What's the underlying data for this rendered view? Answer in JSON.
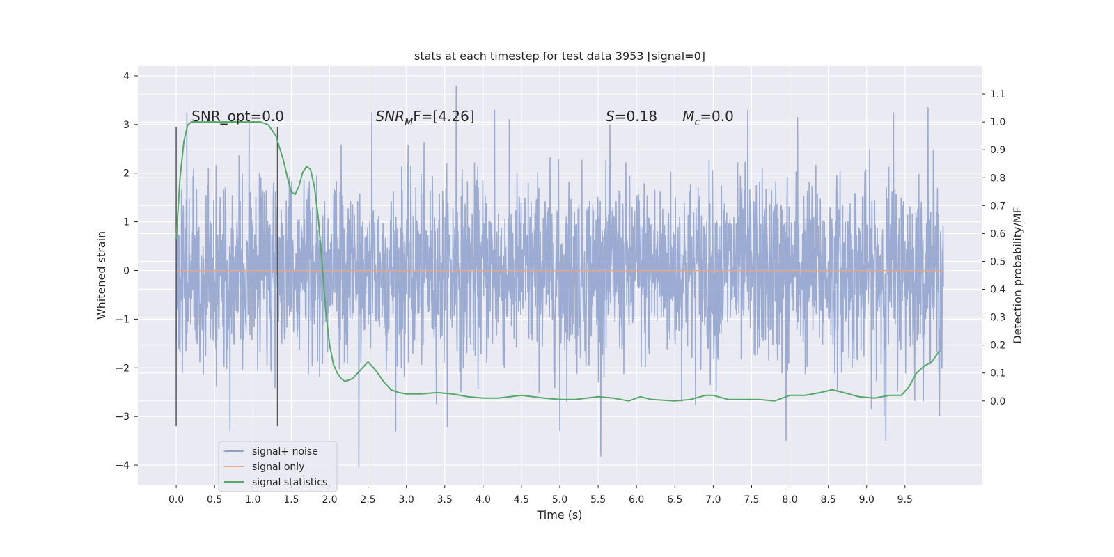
{
  "chart_data": {
    "type": "line",
    "title": "stats at each timestep for test data 3953 [signal=0]",
    "xlabel": "Time (s)",
    "ylabel": "Whitened strain",
    "y2label": "Detection probability/MF",
    "xlim": [
      -0.5,
      10.5
    ],
    "ylim": [
      -4.4,
      4.2
    ],
    "y2lim": [
      -0.3,
      1.2
    ],
    "xticks": [
      "0.0",
      "0.5",
      "1.0",
      "1.5",
      "2.0",
      "2.5",
      "3.0",
      "3.5",
      "4.0",
      "4.5",
      "5.0",
      "5.5",
      "6.0",
      "6.5",
      "7.0",
      "7.5",
      "8.0",
      "8.5",
      "9.0",
      "9.5"
    ],
    "yticks": [
      "4",
      "3",
      "2",
      "1",
      "0",
      "−1",
      "−2",
      "−3",
      "−4"
    ],
    "y2ticks": [
      "1.1",
      "1.0",
      "0.9",
      "0.8",
      "0.7",
      "0.6",
      "0.5",
      "0.4",
      "0.3",
      "0.2",
      "0.1",
      "0.0"
    ],
    "grid": true,
    "legend_position": "lower-left",
    "colors": {
      "noise": "#8da0cb",
      "signal": "#e5a88a",
      "stats": "#55a868",
      "vline": "#555555",
      "background": "#eaeaf2",
      "grid": "#ffffff"
    },
    "series": [
      {
        "name": "signal+ noise",
        "kind": "noise",
        "x_range": [
          0.0,
          10.0
        ],
        "envelope_std": 0.95,
        "observed_extremes": [
          {
            "x": 0.14,
            "y": 3.25
          },
          {
            "x": 0.7,
            "y": -3.3
          },
          {
            "x": 0.95,
            "y": 3.1
          },
          {
            "x": 2.38,
            "y": -4.05
          },
          {
            "x": 2.55,
            "y": 3.25
          },
          {
            "x": 3.65,
            "y": 3.8
          },
          {
            "x": 4.15,
            "y": 3.3
          },
          {
            "x": 5.0,
            "y": -3.3
          },
          {
            "x": 7.45,
            "y": 3.3
          },
          {
            "x": 7.95,
            "y": -3.5
          },
          {
            "x": 8.1,
            "y": 3.15
          },
          {
            "x": 9.25,
            "y": -3.5
          },
          {
            "x": 9.35,
            "y": 3.25
          },
          {
            "x": 9.8,
            "y": 3.35
          },
          {
            "x": 9.95,
            "y": -3.0
          }
        ]
      },
      {
        "name": "signal only",
        "kind": "line",
        "axis": "left",
        "x": [
          0.0,
          10.0
        ],
        "y": [
          0.0,
          0.0
        ]
      },
      {
        "name": "signal statistics",
        "kind": "line",
        "axis": "right",
        "x": [
          0.0,
          0.05,
          0.1,
          0.15,
          0.2,
          0.3,
          0.5,
          0.7,
          0.9,
          1.0,
          1.1,
          1.2,
          1.3,
          1.4,
          1.45,
          1.5,
          1.55,
          1.6,
          1.65,
          1.7,
          1.75,
          1.8,
          1.85,
          1.9,
          1.95,
          2.0,
          2.05,
          2.1,
          2.15,
          2.2,
          2.3,
          2.4,
          2.5,
          2.6,
          2.7,
          2.8,
          2.9,
          3.0,
          3.2,
          3.4,
          3.6,
          3.8,
          4.0,
          4.2,
          4.5,
          4.8,
          5.0,
          5.2,
          5.5,
          5.7,
          5.9,
          6.05,
          6.2,
          6.5,
          6.7,
          6.9,
          7.0,
          7.2,
          7.4,
          7.6,
          7.8,
          8.0,
          8.2,
          8.4,
          8.55,
          8.7,
          8.9,
          9.1,
          9.3,
          9.45,
          9.55,
          9.65,
          9.75,
          9.85,
          9.95
        ],
        "y": [
          0.58,
          0.8,
          0.93,
          0.99,
          1.0,
          1.0,
          1.0,
          1.0,
          1.0,
          1.0,
          1.0,
          0.99,
          0.95,
          0.86,
          0.8,
          0.75,
          0.74,
          0.77,
          0.82,
          0.84,
          0.83,
          0.77,
          0.66,
          0.5,
          0.32,
          0.2,
          0.13,
          0.1,
          0.08,
          0.07,
          0.08,
          0.11,
          0.14,
          0.11,
          0.07,
          0.04,
          0.03,
          0.025,
          0.025,
          0.03,
          0.025,
          0.015,
          0.01,
          0.01,
          0.02,
          0.01,
          0.005,
          0.005,
          0.015,
          0.01,
          0.0,
          0.015,
          0.005,
          0.0,
          0.005,
          0.02,
          0.02,
          0.005,
          0.005,
          0.005,
          0.0,
          0.02,
          0.02,
          0.03,
          0.04,
          0.03,
          0.015,
          0.01,
          0.02,
          0.02,
          0.05,
          0.1,
          0.125,
          0.14,
          0.18
        ]
      }
    ],
    "vertical_lines": [
      {
        "x": 0.0,
        "y_top": 2.95,
        "y_bottom": -3.2
      },
      {
        "x": 1.32,
        "y_top": 2.95,
        "y_bottom": -3.2
      }
    ],
    "annotations": [
      {
        "text": "SNR_opt=0.0",
        "x": 0.2,
        "y": 3.07,
        "math": false
      },
      {
        "base": "SNR",
        "sub": "M",
        "after": "F=[4.26]",
        "x": 2.6,
        "y": 3.07,
        "math": true
      },
      {
        "base": "S",
        "sub": "",
        "after": "=0.18",
        "x": 5.6,
        "y": 3.07,
        "math": true
      },
      {
        "base": "M",
        "sub": "c",
        "after": "=0.0",
        "x": 6.6,
        "y": 3.07,
        "math": true
      }
    ]
  }
}
